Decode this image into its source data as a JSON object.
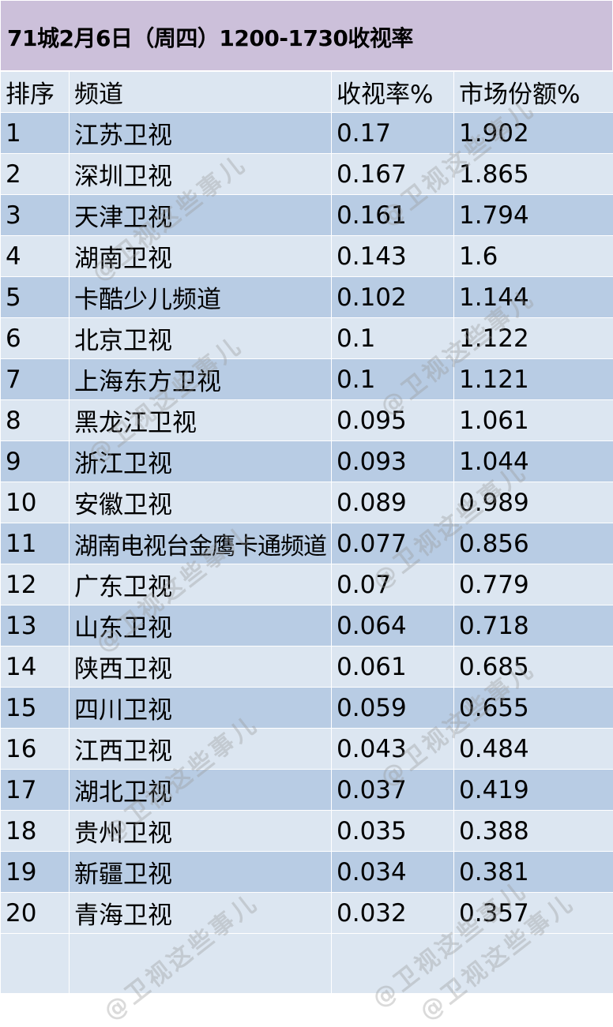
{
  "title": "71城2月6日（周四）1200-1730收视率",
  "headers": [
    "排序",
    "频道",
    "收视率%",
    "市场份额%"
  ],
  "rows": [
    {
      "rank": "1",
      "channel": "江苏卫视",
      "rating": "0.17",
      "share": "1.902"
    },
    {
      "rank": "2",
      "channel": "深圳卫视",
      "rating": "0.167",
      "share": "1.865"
    },
    {
      "rank": "3",
      "channel": "天津卫视",
      "rating": "0.161",
      "share": "1.794"
    },
    {
      "rank": "4",
      "channel": "湖南卫视",
      "rating": "0.143",
      "share": "1.6"
    },
    {
      "rank": "5",
      "channel": "卡酷少儿频道",
      "rating": "0.102",
      "share": "1.144"
    },
    {
      "rank": "6",
      "channel": "北京卫视",
      "rating": "0.1",
      "share": "1.122"
    },
    {
      "rank": "7",
      "channel": "上海东方卫视",
      "rating": "0.1",
      "share": "1.121"
    },
    {
      "rank": "8",
      "channel": "黑龙江卫视",
      "rating": "0.095",
      "share": "1.061"
    },
    {
      "rank": "9",
      "channel": "浙江卫视",
      "rating": "0.093",
      "share": "1.044"
    },
    {
      "rank": "10",
      "channel": "安徽卫视",
      "rating": "0.089",
      "share": "0.989"
    },
    {
      "rank": "11",
      "channel": "湖南电视台金鹰卡通频道",
      "rating": "0.077",
      "share": "0.856"
    },
    {
      "rank": "12",
      "channel": "广东卫视",
      "rating": "0.07",
      "share": "0.779"
    },
    {
      "rank": "13",
      "channel": "山东卫视",
      "rating": "0.064",
      "share": "0.718"
    },
    {
      "rank": "14",
      "channel": "陕西卫视",
      "rating": "0.061",
      "share": "0.685"
    },
    {
      "rank": "15",
      "channel": "四川卫视",
      "rating": "0.059",
      "share": "0.655"
    },
    {
      "rank": "16",
      "channel": "江西卫视",
      "rating": "0.043",
      "share": "0.484"
    },
    {
      "rank": "17",
      "channel": "湖北卫视",
      "rating": "0.037",
      "share": "0.419"
    },
    {
      "rank": "18",
      "channel": "贵州卫视",
      "rating": "0.035",
      "share": "0.388"
    },
    {
      "rank": "19",
      "channel": "新疆卫视",
      "rating": "0.034",
      "share": "0.381"
    },
    {
      "rank": "20",
      "channel": "青海卫视",
      "rating": "0.032",
      "share": "0.357"
    }
  ],
  "watermark": "@卫视这些事儿",
  "colors": {
    "title_bg": "#ccc0da",
    "row_light": "#dce6f1",
    "row_dark": "#b8cce4",
    "border": "#ffffff"
  }
}
